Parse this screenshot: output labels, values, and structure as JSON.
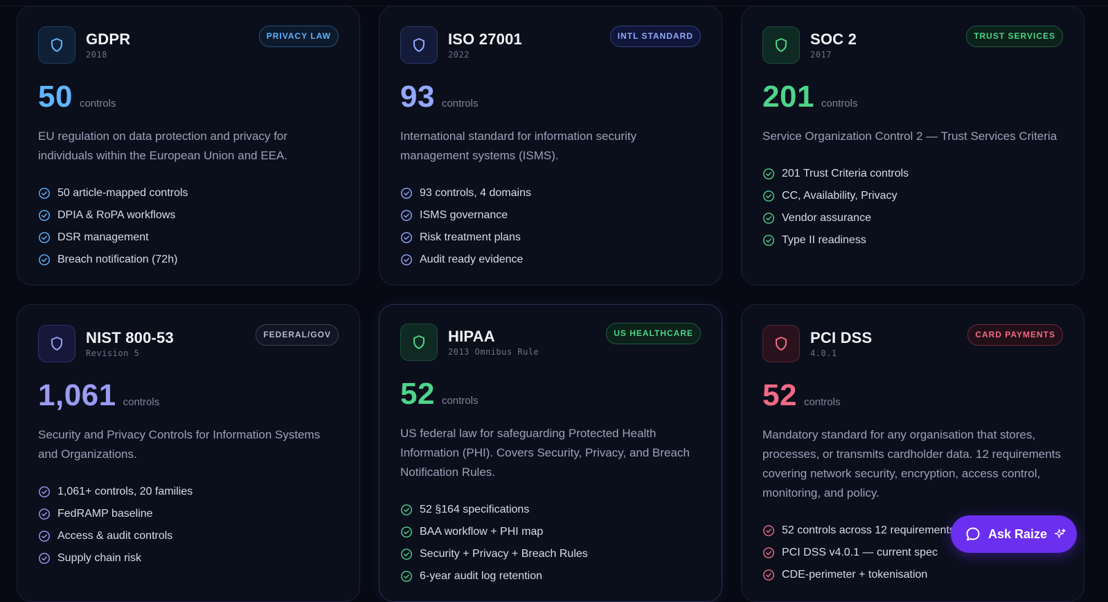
{
  "colors": {
    "background": "#070a14",
    "card": "#0b0f1c",
    "gdpr_accent": "#5fb6ff",
    "iso_accent": "#93a8ff",
    "soc2_accent": "#4ed48a",
    "nist_accent": "#9a9cf2",
    "hipaa_accent": "#4ed48a",
    "pci_accent": "#f06a86",
    "ask_button": "#6b2ff0"
  },
  "cards": [
    {
      "name": "GDPR",
      "year": "2018",
      "badge": "PRIVACY LAW",
      "count": "50",
      "count_label": "controls",
      "description": "EU regulation on data protection and privacy for individuals within the European Union and EEA.",
      "features": [
        "50 article-mapped controls",
        "DPIA & RoPA workflows",
        "DSR management",
        "Breach notification (72h)"
      ],
      "icon": "shield-icon"
    },
    {
      "name": "ISO 27001",
      "year": "2022",
      "badge": "INTL STANDARD",
      "count": "93",
      "count_label": "controls",
      "description": "International standard for information security management systems (ISMS).",
      "features": [
        "93 controls, 4 domains",
        "ISMS governance",
        "Risk treatment plans",
        "Audit ready evidence"
      ],
      "icon": "shield-icon"
    },
    {
      "name": "SOC 2",
      "year": "2017",
      "badge": "TRUST SERVICES",
      "count": "201",
      "count_label": "controls",
      "description": "Service Organization Control 2 — Trust Services Criteria",
      "features": [
        "201 Trust Criteria controls",
        "CC, Availability, Privacy",
        "Vendor assurance",
        "Type II readiness"
      ],
      "icon": "shield-icon"
    },
    {
      "name": "NIST 800-53",
      "year": "Revision 5",
      "badge": "FEDERAL/GOV",
      "count": "1,061",
      "count_label": "controls",
      "description": "Security and Privacy Controls for Information Systems and Organizations.",
      "features": [
        "1,061+ controls, 20 families",
        "FedRAMP baseline",
        "Access & audit controls",
        "Supply chain risk"
      ],
      "icon": "shield-icon"
    },
    {
      "name": "HIPAA",
      "year": "2013 Omnibus Rule",
      "badge": "US HEALTHCARE",
      "count": "52",
      "count_label": "controls",
      "description": "US federal law for safeguarding Protected Health Information (PHI). Covers Security, Privacy, and Breach Notification Rules.",
      "features": [
        "52 §164 specifications",
        "BAA workflow + PHI map",
        "Security + Privacy + Breach Rules",
        "6-year audit log retention"
      ],
      "icon": "shield-icon"
    },
    {
      "name": "PCI DSS",
      "year": "4.0.1",
      "badge": "CARD PAYMENTS",
      "count": "52",
      "count_label": "controls",
      "description": "Mandatory standard for any organisation that stores, processes, or transmits cardholder data. 12 requirements covering network security, encryption, access control, monitoring, and policy.",
      "features": [
        "52 controls across 12 requirements",
        "PCI DSS v4.0.1 — current spec",
        "CDE-perimeter + tokenisation"
      ],
      "icon": "shield-icon"
    }
  ],
  "ask_button": {
    "label": "Ask Raize",
    "icon": "chat-bubble-icon",
    "trailing_icon": "sparkle-icon"
  }
}
